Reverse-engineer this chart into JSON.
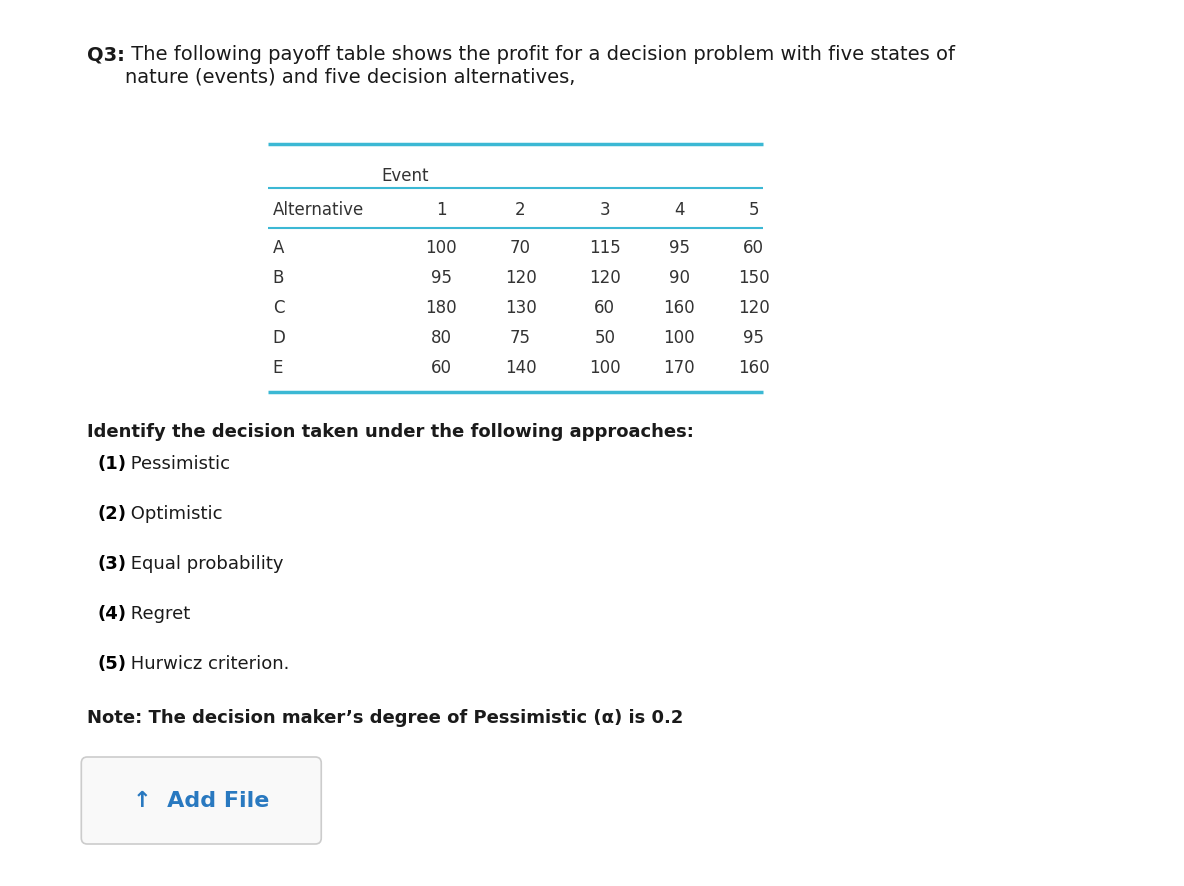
{
  "title_bold": "Q3:",
  "title_rest": " The following payoff table shows the profit for a decision problem with five states of\nnature (events) and five decision alternatives,",
  "table_header_group": "Event",
  "table_col_header": [
    "Alternative",
    "1",
    "2",
    "3",
    "4",
    "5"
  ],
  "table_rows": [
    [
      "A",
      100,
      70,
      115,
      95,
      60
    ],
    [
      "B",
      95,
      120,
      120,
      90,
      150
    ],
    [
      "C",
      180,
      130,
      60,
      160,
      120
    ],
    [
      "D",
      80,
      75,
      50,
      100,
      95
    ],
    [
      "E",
      60,
      140,
      100,
      170,
      160
    ]
  ],
  "identify_text_bold": "Identify the decision taken under the following approaches:",
  "approaches": [
    [
      "(1)",
      " Pessimistic"
    ],
    [
      "(2)",
      " Optimistic"
    ],
    [
      "(3)",
      " Equal probability"
    ],
    [
      "(4)",
      " Regret"
    ],
    [
      "(5)",
      " Hurwicz criterion."
    ]
  ],
  "note_text": "Note: The decision maker’s degree of Pessimistic (α) is 0.2",
  "add_file_text": "↑  Add File",
  "bg_color": "#ffffff",
  "text_color": "#1a1a1a",
  "table_line_color": "#3bb8d4",
  "table_text_color": "#333333",
  "approach_num_color": "#000000",
  "add_file_color": "#2979c0",
  "add_file_border": "#cccccc",
  "add_file_bg": "#f9f9f9",
  "font_size_title": 14,
  "font_size_table": 12,
  "font_size_body": 13,
  "font_size_note": 13,
  "font_size_btn": 16
}
